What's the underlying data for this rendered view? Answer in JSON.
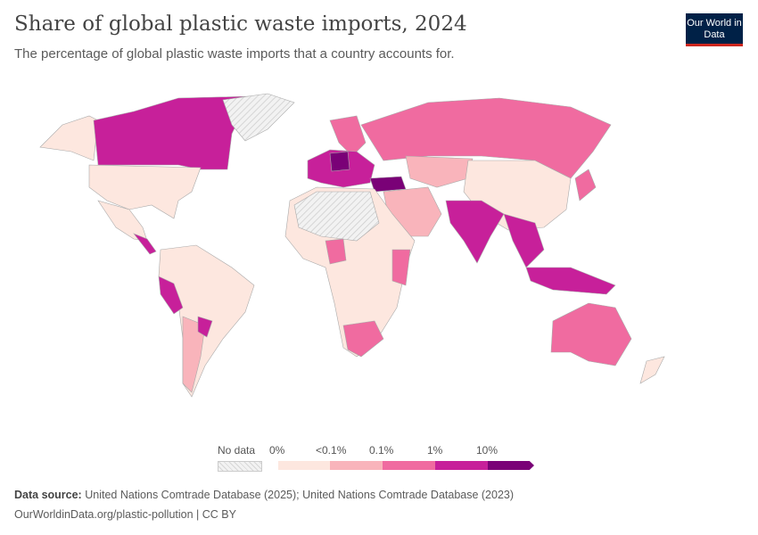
{
  "header": {
    "title": "Share of global plastic waste imports, 2024",
    "subtitle": "The percentage of global plastic waste imports that a country accounts for.",
    "logo": "Our World in Data"
  },
  "legend": {
    "no_data": "No data",
    "ticks": [
      "0%",
      "<0.1%",
      "0.1%",
      "1%",
      "10%"
    ],
    "colors": {
      "no_data": "#e8e8e8",
      "bins": [
        "#fde7df",
        "#f9b4bb",
        "#f06ba0",
        "#c7209a",
        "#7a0177"
      ]
    }
  },
  "footer": {
    "source_label": "Data source:",
    "source": "United Nations Comtrade Database (2025); United Nations Comtrade Database (2023)",
    "url": "OurWorldinData.org/plastic-pollution | CC BY"
  }
}
